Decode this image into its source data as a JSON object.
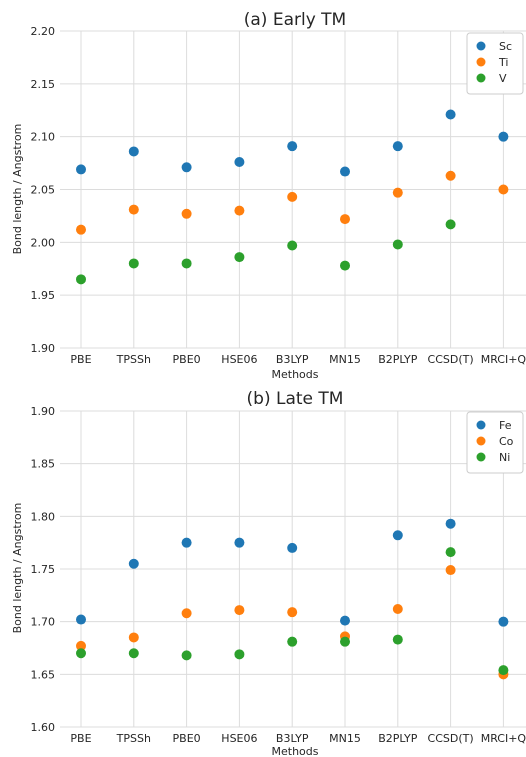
{
  "chart_data": [
    {
      "type": "scatter",
      "title": "(a) Early TM",
      "xlabel": "Methods",
      "ylabel": "Bond length / Angstrom",
      "categories": [
        "PBE",
        "TPSSh",
        "PBE0",
        "HSE06",
        "B3LYP",
        "MN15",
        "B2PLYP",
        "CCSD(T)",
        "MRCI+Q"
      ],
      "ylim": [
        1.9,
        2.2
      ],
      "yticks": [
        "1.90",
        "1.95",
        "2.00",
        "2.05",
        "2.10",
        "2.15",
        "2.20"
      ],
      "grid": true,
      "legend_position": "top-right",
      "series": [
        {
          "name": "Sc",
          "color": "#1f77b4",
          "values": [
            2.069,
            2.086,
            2.071,
            2.076,
            2.091,
            2.067,
            2.091,
            2.121,
            2.1
          ]
        },
        {
          "name": "Ti",
          "color": "#ff7f0e",
          "values": [
            2.012,
            2.031,
            2.027,
            2.03,
            2.043,
            2.022,
            2.047,
            2.063,
            2.05
          ]
        },
        {
          "name": "V",
          "color": "#2ca02c",
          "values": [
            1.965,
            1.98,
            1.98,
            1.986,
            1.997,
            1.978,
            1.998,
            2.017,
            null
          ]
        }
      ]
    },
    {
      "type": "scatter",
      "title": "(b) Late TM",
      "xlabel": "Methods",
      "ylabel": "Bond length / Angstrom",
      "categories": [
        "PBE",
        "TPSSh",
        "PBE0",
        "HSE06",
        "B3LYP",
        "MN15",
        "B2PLYP",
        "CCSD(T)",
        "MRCI+Q"
      ],
      "ylim": [
        1.6,
        1.9
      ],
      "yticks": [
        "1.60",
        "1.65",
        "1.70",
        "1.75",
        "1.80",
        "1.85",
        "1.90"
      ],
      "grid": true,
      "legend_position": "top-right",
      "series": [
        {
          "name": "Fe",
          "color": "#1f77b4",
          "values": [
            1.702,
            1.755,
            1.775,
            1.775,
            1.77,
            1.701,
            1.782,
            1.793,
            1.7
          ]
        },
        {
          "name": "Co",
          "color": "#ff7f0e",
          "values": [
            1.677,
            1.685,
            1.708,
            1.711,
            1.709,
            1.686,
            1.712,
            1.749,
            1.65
          ]
        },
        {
          "name": "Ni",
          "color": "#2ca02c",
          "values": [
            1.67,
            1.67,
            1.668,
            1.669,
            1.681,
            1.681,
            1.683,
            1.766,
            1.654
          ]
        }
      ]
    }
  ]
}
